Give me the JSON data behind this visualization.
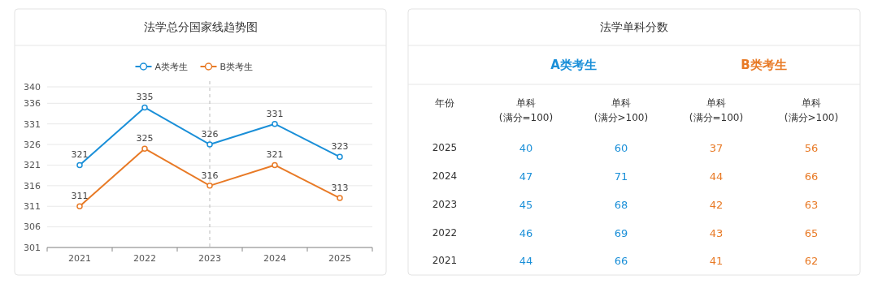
{
  "chart_data": [
    {
      "type": "line",
      "title": "法学总分国家线趋势图",
      "categories": [
        "2021",
        "2022",
        "2023",
        "2024",
        "2025"
      ],
      "series": [
        {
          "name": "A类考生",
          "color": "#1a8fd8",
          "values": [
            321,
            335,
            326,
            331,
            323
          ]
        },
        {
          "name": "B类考生",
          "color": "#e87a26",
          "values": [
            311,
            325,
            316,
            321,
            313
          ]
        }
      ],
      "ylim": [
        301,
        340
      ],
      "yticks": [
        301,
        306,
        311,
        316,
        321,
        326,
        331,
        336,
        340
      ],
      "grid": "y",
      "legend": "top",
      "marker": "circle",
      "line_style": "solid",
      "data_labels": true,
      "ref_lines": [
        {
          "axis": "x",
          "value": "2023",
          "color": "#bbbbbb",
          "line_style": "dashed"
        }
      ]
    },
    {
      "type": "heatmap",
      "title": "法学单科分数",
      "ylabel": "年份",
      "categories": [
        "单科\n(满分=100)",
        "单科\n(满分>100)",
        "单科\n(满分=100)",
        "单科\n(满分>100)"
      ],
      "y_categories": [
        "2025",
        "2024",
        "2023",
        "2022",
        "2021"
      ],
      "cells": [
        [
          40,
          60,
          37,
          56
        ],
        [
          47,
          71,
          44,
          66
        ],
        [
          45,
          68,
          42,
          63
        ],
        [
          46,
          69,
          43,
          65
        ],
        [
          44,
          66,
          41,
          62
        ]
      ],
      "colors": [
        "#1a8fd8",
        "#1a8fd8",
        "#e87a26",
        "#e87a26"
      ],
      "annotations": [
        "A类考生",
        "B类考生"
      ],
      "data_labels": true
    }
  ]
}
